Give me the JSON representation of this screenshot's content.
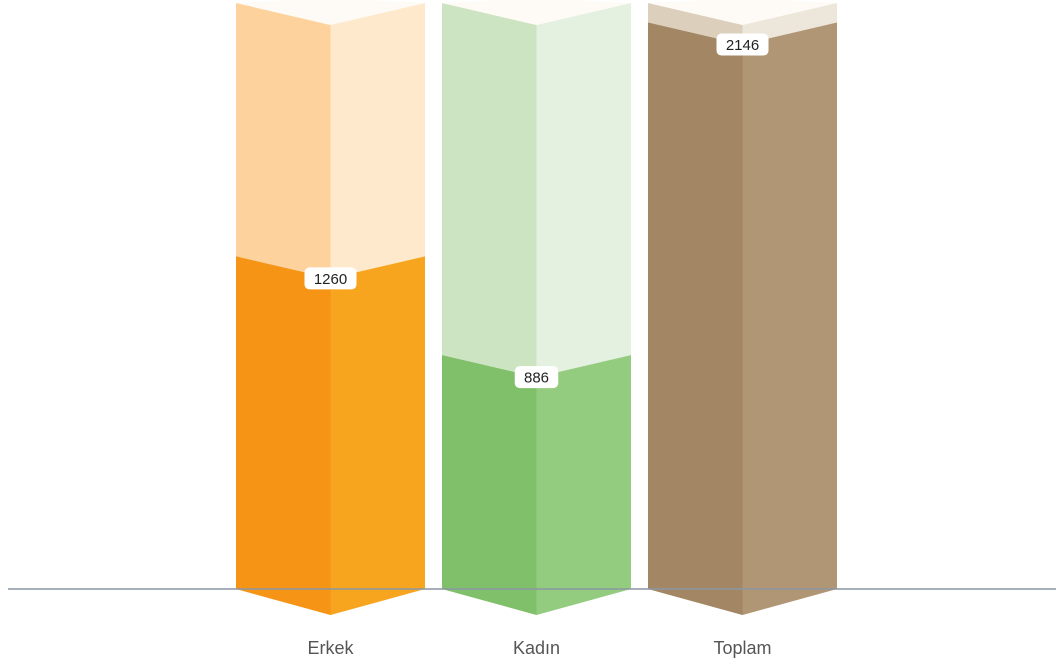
{
  "chart_data": {
    "type": "bar",
    "categories": [
      "Erkek",
      "Kadın",
      "Toplam"
    ],
    "values": [
      1260,
      886,
      2146
    ],
    "ylim": [
      0,
      2220
    ],
    "grid": false,
    "legend": "none",
    "colors": {
      "Erkek": {
        "dark": "#f59415",
        "light": "#f7a51e",
        "bg_dark": "#fdd29c",
        "bg_light": "#fee9cd"
      },
      "Kadın": {
        "dark": "#80c06a",
        "light": "#94cc7f",
        "bg_dark": "#cde4c2",
        "bg_light": "#e5f1e0"
      },
      "Toplam": {
        "dark": "#a38663",
        "light": "#b19675",
        "bg_dark": "#dccfbb",
        "bg_light": "#ede6da"
      }
    },
    "axis_color": "#8a96a3"
  }
}
